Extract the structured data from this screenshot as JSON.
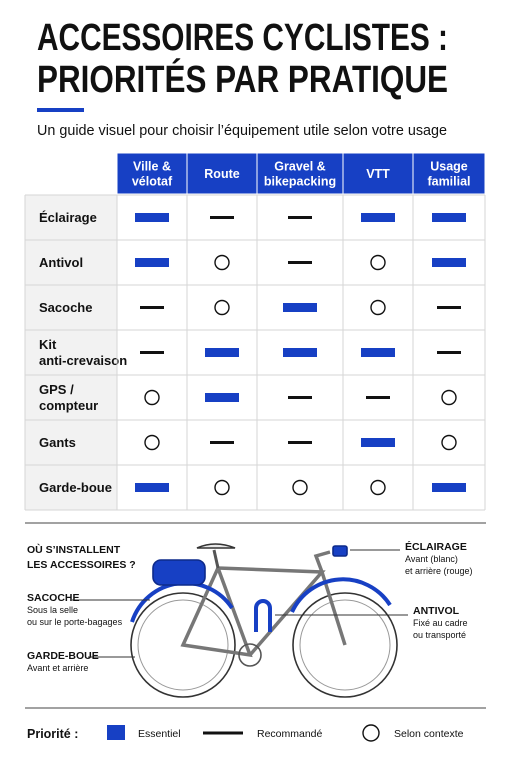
{
  "header": {
    "title": [
      "ACCESSOIRES CYCLISTES :",
      "PRIORITÉS PAR PRATIQUE"
    ],
    "subtitle": "Un guide visuel pour choisir l’équipement utile selon votre usage"
  },
  "table": {
    "columns": [
      [
        "Ville &",
        "vélotaf"
      ],
      [
        "Route"
      ],
      [
        "Gravel &",
        "bikepacking"
      ],
      [
        "VTT"
      ],
      [
        "Usage",
        "familial"
      ]
    ],
    "rows": [
      {
        "label": [
          "Éclairage"
        ],
        "cells": [
          "Essentiel",
          "Recommandé",
          "Recommandé",
          "Essentiel",
          "Essentiel"
        ]
      },
      {
        "label": [
          "Antivol"
        ],
        "cells": [
          "Essentiel",
          "Selon contexte",
          "Recommandé",
          "Selon contexte",
          "Essentiel"
        ]
      },
      {
        "label": [
          "Sacoche"
        ],
        "cells": [
          "Recommandé",
          "Selon contexte",
          "Essentiel",
          "Selon contexte",
          "Recommandé"
        ]
      },
      {
        "label": [
          "Kit",
          "anti-crevaison"
        ],
        "cells": [
          "Recommandé",
          "Essentiel",
          "Essentiel",
          "Essentiel",
          "Recommandé"
        ]
      },
      {
        "label": [
          "GPS /",
          "compteur"
        ],
        "cells": [
          "Selon contexte",
          "Essentiel",
          "Recommandé",
          "Recommandé",
          "Selon contexte"
        ]
      },
      {
        "label": [
          "Gants"
        ],
        "cells": [
          "Selon contexte",
          "Recommandé",
          "Recommandé",
          "Essentiel",
          "Selon contexte"
        ]
      },
      {
        "label": [
          "Garde-boue"
        ],
        "cells": [
          "Essentiel",
          "Selon contexte",
          "Selon contexte",
          "Selon contexte",
          "Essentiel"
        ]
      }
    ]
  },
  "diagram": {
    "title": [
      "OÙ S’INSTALLENT",
      "LES ACCESSOIRES ?"
    ],
    "callouts": [
      {
        "label": "SACOCHE",
        "text": [
          "Sous la selle",
          "ou sur le porte-bagages"
        ]
      },
      {
        "label": "GARDE-BOUE",
        "text": [
          "Avant et arrière"
        ]
      },
      {
        "label": "ÉCLAIRAGE",
        "text": [
          "Avant (blanc)",
          "et arrière (rouge)"
        ]
      },
      {
        "label": "ANTIVOL",
        "text": [
          "Fixé au cadre",
          "ou transporté"
        ]
      }
    ]
  },
  "legend": {
    "title": "Priorité :",
    "items": [
      "Essentiel",
      "Recommandé",
      "Selon contexte"
    ]
  }
}
